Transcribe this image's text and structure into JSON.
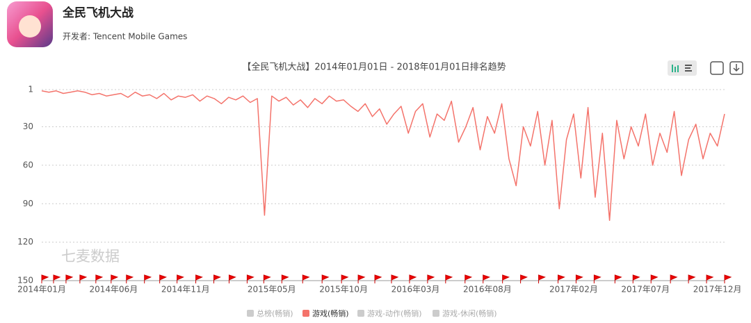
{
  "header": {
    "app_name": "全民飞机大战",
    "developer": "开发者: Tencent Mobile Games"
  },
  "watermark": "七麦数据",
  "chart_data": {
    "type": "line",
    "title": "【全民飞机大战】2014年01月01日 - 2018年01月01日排名趋势",
    "categories": [
      "2014年01月",
      null,
      null,
      null,
      null,
      null,
      null,
      null,
      null,
      null,
      "2014年06月",
      null,
      null,
      null,
      null,
      null,
      null,
      null,
      null,
      null,
      "2014年11月",
      null,
      null,
      null,
      null,
      null,
      null,
      null,
      null,
      null,
      null,
      null,
      "2015年05月",
      null,
      null,
      null,
      null,
      null,
      null,
      null,
      null,
      null,
      "2015年10月",
      null,
      null,
      null,
      null,
      null,
      null,
      null,
      null,
      null,
      "2016年03月",
      null,
      null,
      null,
      null,
      null,
      null,
      null,
      null,
      null,
      "2016年08月",
      null,
      null,
      null,
      null,
      null,
      null,
      null,
      null,
      null,
      null,
      null,
      "2017年02月",
      null,
      null,
      null,
      null,
      null,
      null,
      null,
      null,
      null,
      "2017年07月",
      null,
      null,
      null,
      null,
      null,
      null,
      null,
      null,
      null,
      "2017年12月",
      null
    ],
    "series": [
      {
        "name": "总榜(畅销)",
        "color": "#cccccc"
      },
      {
        "name": "游戏(畅销)",
        "color": "#f4736b",
        "values": [
          2,
          3,
          2,
          4,
          3,
          2,
          3,
          5,
          4,
          6,
          5,
          4,
          7,
          3,
          6,
          5,
          8,
          4,
          9,
          6,
          7,
          5,
          10,
          6,
          8,
          12,
          7,
          9,
          6,
          11,
          8,
          99,
          6,
          10,
          7,
          13,
          9,
          15,
          8,
          12,
          6,
          10,
          9,
          14,
          18,
          12,
          22,
          16,
          28,
          20,
          14,
          35,
          18,
          12,
          38,
          20,
          25,
          10,
          42,
          30,
          15,
          48,
          22,
          35,
          12,
          55,
          76,
          30,
          45,
          18,
          60,
          25,
          94,
          40,
          20,
          70,
          15,
          85,
          35,
          103,
          25,
          55,
          30,
          45,
          20,
          60,
          35,
          50,
          18,
          68,
          40,
          28,
          55,
          35,
          45,
          20
        ]
      },
      {
        "name": "游戏-动作(畅销)",
        "color": "#cccccc"
      },
      {
        "name": "游戏-休闲(畅销)",
        "color": "#cccccc"
      }
    ],
    "ylim": [
      150,
      1
    ],
    "yticks": [
      1,
      30,
      60,
      90,
      120,
      150
    ],
    "inverted": true,
    "grid": true
  }
}
